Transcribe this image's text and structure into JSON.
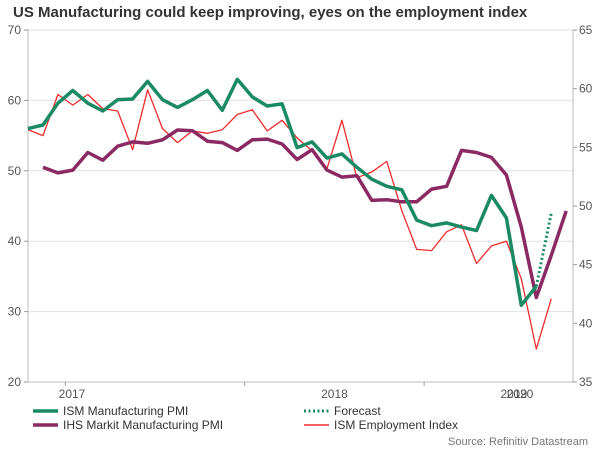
{
  "chart_data": {
    "type": "line",
    "title": "US Manufacturing could keep improving, eyes on the employment index",
    "source": "Source: Refinitiv Datastream",
    "x_labels": [
      "2017",
      "2018",
      "2019",
      "2020"
    ],
    "x_start": "2016-10",
    "left_axis": {
      "ylim": [
        20,
        70
      ],
      "ticks": [
        20,
        30,
        40,
        50,
        60,
        70
      ]
    },
    "right_axis": {
      "ylim": [
        35,
        65
      ],
      "ticks": [
        35,
        40,
        45,
        50,
        55,
        60,
        65
      ]
    },
    "grid": true,
    "legend": "bottom",
    "series": [
      {
        "name": "ISM Manufacturing PMI",
        "axis": "left",
        "color": "#1a8a64",
        "style": "solid-thick",
        "values": [
          56.0,
          56.5,
          59.6,
          61.4,
          59.6,
          58.5,
          60.1,
          60.2,
          62.7,
          60.1,
          59.0,
          60.1,
          61.4,
          58.6,
          63.0,
          60.5,
          59.2,
          59.5,
          53.3,
          54.1,
          51.8,
          52.4,
          50.5,
          48.8,
          47.8,
          47.3,
          43.0,
          42.2,
          42.6,
          42.0,
          41.5,
          46.5,
          43.3,
          30.9,
          33.6
        ]
      },
      {
        "name": "IHS Markit Manufacturing PMI",
        "axis": "left",
        "color": "#8b2a62",
        "style": "solid-thick",
        "values": [
          null,
          50.5,
          49.7,
          50.1,
          52.6,
          51.5,
          53.5,
          54.1,
          53.9,
          54.4,
          55.8,
          55.7,
          54.2,
          54.0,
          52.9,
          54.4,
          54.5,
          53.8,
          51.6,
          53.0,
          50.1,
          49.1,
          49.3,
          45.8,
          45.9,
          45.6,
          45.6,
          47.4,
          47.8,
          52.9,
          52.6,
          51.9,
          49.4,
          42.0,
          32.0,
          38.0,
          44.3
        ]
      },
      {
        "name": "ISM Employment Index",
        "axis": "right",
        "color": "#ee2c2c",
        "style": "solid-thin",
        "values": [
          56.5,
          56.0,
          59.5,
          58.6,
          59.5,
          58.3,
          58.1,
          54.8,
          59.9,
          56.6,
          55.4,
          56.4,
          56.2,
          56.5,
          57.8,
          58.2,
          56.4,
          57.3,
          55.8,
          54.7,
          53.2,
          57.3,
          52.4,
          52.9,
          53.8,
          49.6,
          46.3,
          46.2,
          47.8,
          48.4,
          45.1,
          46.6,
          47.0,
          43.8,
          37.8,
          42.1
        ]
      },
      {
        "name": "Forecast",
        "axis": "left",
        "color": "#1a8a64",
        "style": "dotted",
        "values_from_index": 34,
        "values": [
          33.6,
          44.0
        ]
      }
    ]
  },
  "legend": [
    {
      "label": "ISM Manufacturing PMI"
    },
    {
      "label": "IHS Markit Manufacturing PMI"
    },
    {
      "label": "Forecast"
    },
    {
      "label": "ISM Employment Index"
    }
  ]
}
